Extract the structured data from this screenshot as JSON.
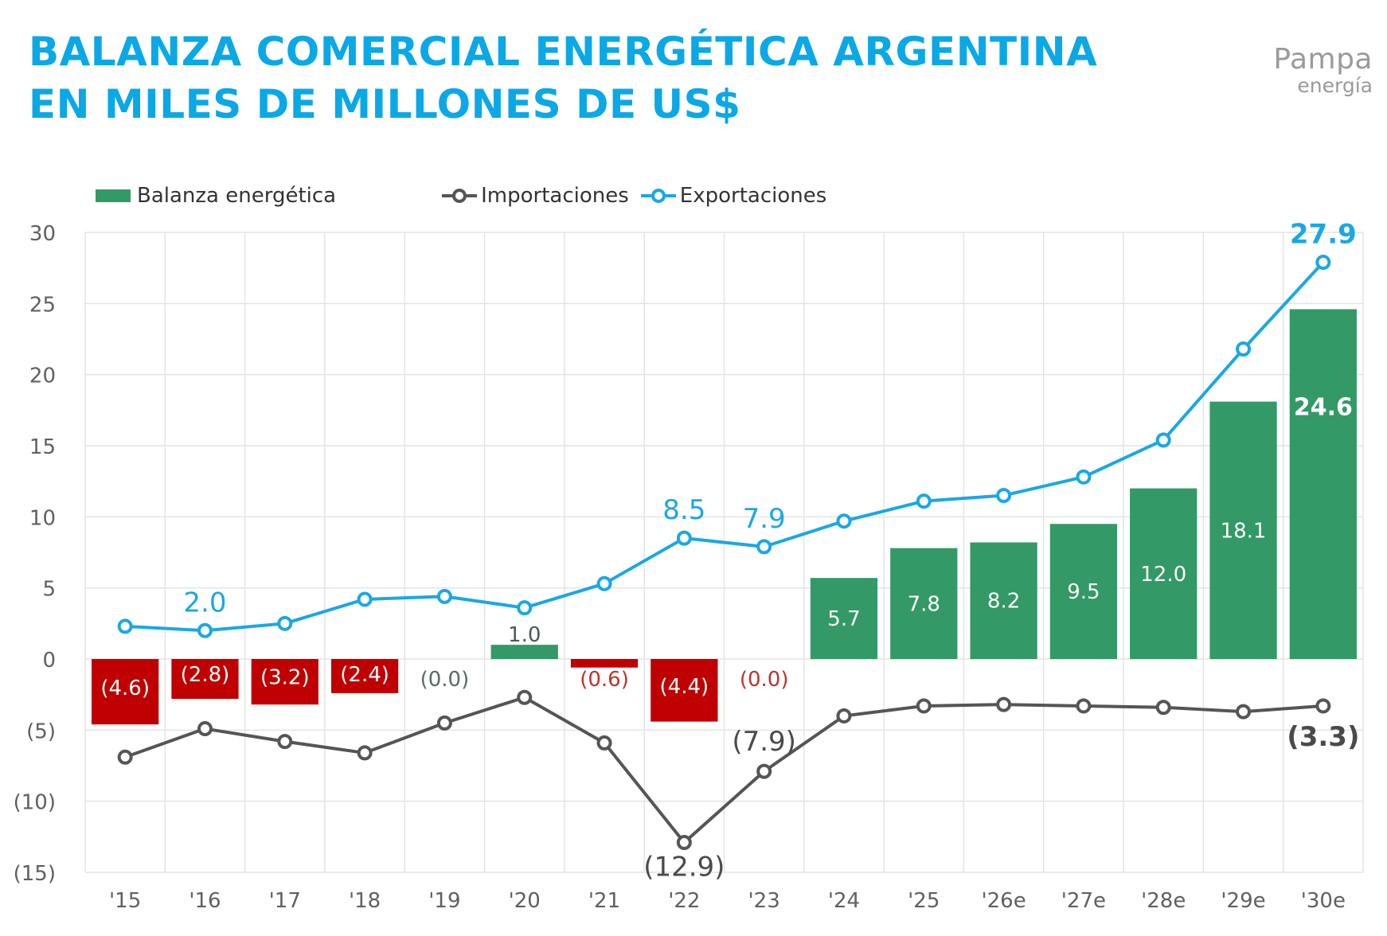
{
  "header": {
    "title_line1": "BALANZA COMERCIAL ENERGÉTICA ARGENTINA",
    "title_line2": "EN MILES DE MILLONES DE US$"
  },
  "logo": {
    "main": "Pampa",
    "sub": "energía"
  },
  "colors": {
    "title": "#0aa8e6",
    "positive_bar": "#339966",
    "negative_bar": "#c00000",
    "imports_line": "#555555",
    "exports_line": "#1aa7e6",
    "grid": "#e4e4e4",
    "axis_text": "#606060"
  },
  "chart_data": {
    "type": "bar",
    "categories": [
      "'15",
      "'16",
      "'17",
      "'18",
      "'19",
      "'20",
      "'21",
      "'22",
      "'23",
      "'24",
      "'25",
      "'26e",
      "'27e",
      "'28e",
      "'29e",
      "'30e"
    ],
    "ylim": [
      -15,
      30
    ],
    "yticks": [
      30,
      25,
      20,
      15,
      10,
      5,
      0,
      -5,
      -10,
      -15
    ],
    "ytick_labels": [
      "30",
      "25",
      "20",
      "15",
      "10",
      "5",
      "0",
      "(5)",
      "(10)",
      "(15)"
    ],
    "grid": true,
    "legend_position": "top-left",
    "series": [
      {
        "name": "Balanza energética",
        "kind": "bar",
        "values": [
          -4.6,
          -2.8,
          -3.2,
          -2.4,
          0.0,
          1.0,
          -0.6,
          -4.4,
          0.0,
          5.7,
          7.8,
          8.2,
          9.5,
          12.0,
          18.1,
          24.6
        ],
        "labels": [
          "(4.6)",
          "(2.8)",
          "(3.2)",
          "(2.4)",
          "(0.0)",
          "1.0",
          "(0.6)",
          "(4.4)",
          "(0.0)",
          "5.7",
          "7.8",
          "8.2",
          "9.5",
          "12.0",
          "18.1",
          "24.6"
        ]
      },
      {
        "name": "Importaciones",
        "kind": "line",
        "values": [
          -6.9,
          -4.9,
          -5.8,
          -6.6,
          -4.5,
          -2.7,
          -5.9,
          -12.9,
          -7.9,
          -4.0,
          -3.3,
          -3.2,
          -3.3,
          -3.4,
          -3.7,
          -3.3
        ],
        "labels": [
          "",
          "",
          "",
          "",
          "",
          "",
          "",
          "(12.9)",
          "(7.9)",
          "",
          "",
          "",
          "",
          "",
          "",
          "(3.3)"
        ]
      },
      {
        "name": "Exportaciones",
        "kind": "line",
        "values": [
          2.3,
          2.0,
          2.5,
          4.2,
          4.4,
          3.6,
          5.3,
          8.5,
          7.9,
          9.7,
          11.1,
          11.5,
          12.8,
          15.4,
          21.8,
          27.9
        ],
        "labels": [
          "",
          "2.0",
          "",
          "",
          "",
          "",
          "",
          "8.5",
          "7.9",
          "",
          "",
          "",
          "",
          "",
          "",
          "27.9"
        ]
      }
    ]
  }
}
